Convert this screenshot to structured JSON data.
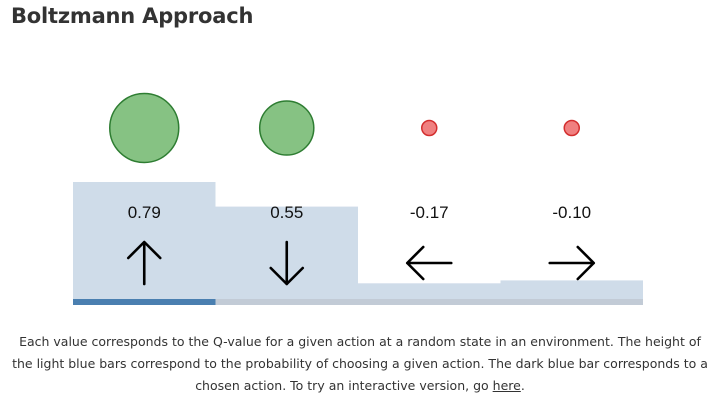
{
  "title": "Boltzmann Approach",
  "actions": [
    {
      "value": "0.79",
      "probability": 0.6071,
      "arrow": "up-arrow-icon",
      "chosen": true
    },
    {
      "value": "0.55",
      "probability": 0.4857,
      "arrow": "down-arrow-icon",
      "chosen": false
    },
    {
      "value": "-0.17",
      "probability": 0.1071,
      "arrow": "left-arrow-icon",
      "chosen": false
    },
    {
      "value": "-0.10",
      "probability": 0.1214,
      "arrow": "right-arrow-icon",
      "chosen": false
    }
  ],
  "colors": {
    "bar_light": "#cfdce9",
    "bar_chosen": "#4a7fb0",
    "baseline": "#c2cbd6",
    "circle_positive_fill": "#86c283",
    "circle_positive_stroke": "#2e7d32",
    "circle_negative_fill": "#f08080",
    "circle_negative_stroke": "#d32f2f"
  },
  "caption": {
    "text": "Each value corresponds to the Q-value for a given action at a random state in an environment. The height of the light blue bars correspond to the probability of choosing a given action. The dark blue bar corresponds to a chosen action. To try an interactive version, go ",
    "link_text": "here",
    "suffix": "."
  }
}
